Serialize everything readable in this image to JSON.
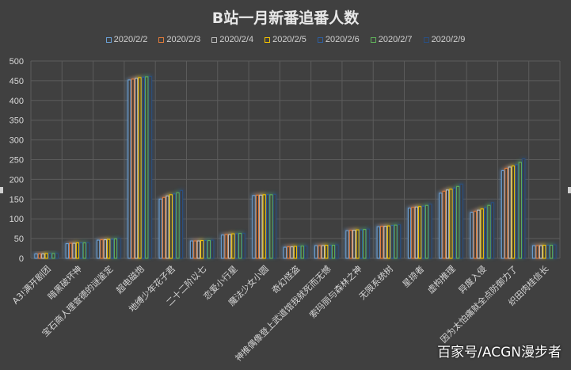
{
  "watermark": "百家号/ACGN漫步者",
  "chart_data": {
    "type": "bar",
    "title": "B站一月新番追番人数",
    "xlabel": "",
    "ylabel": "",
    "ylim": [
      0,
      500
    ],
    "yticks": [
      0,
      50,
      100,
      150,
      200,
      250,
      300,
      350,
      400,
      450,
      500
    ],
    "grid": true,
    "legend_position": "top",
    "categories": [
      "A3!满开剧团",
      "暗黑破坏神",
      "宝石商人理查德的谜鉴定",
      "超电磁炮",
      "地缚少年花子君",
      "二十二阶以七",
      "恋爱小行星",
      "魔法少女小圆",
      "奇幻怪盗",
      "神推偶像登上武道馆我就死而无憾",
      "索玛丽与森林之神",
      "无限系统树",
      "星掠者",
      "虚构推理",
      "异度入侵",
      "因为太怕痛就全点防御力了",
      "织田肉桂信长"
    ],
    "series": [
      {
        "name": "2020/2/2",
        "color": "#6a9fd4",
        "values": [
          11,
          37,
          46,
          452,
          150,
          44,
          59,
          159,
          28,
          32,
          70,
          80,
          127,
          165,
          116,
          222,
          32
        ]
      },
      {
        "name": "2020/2/3",
        "color": "#e07b3a",
        "values": [
          11,
          38,
          47,
          454,
          154,
          44,
          60,
          160,
          29,
          32,
          71,
          81,
          129,
          170,
          119,
          228,
          32
        ]
      },
      {
        "name": "2020/2/4",
        "color": "#bdbdbd",
        "values": [
          11,
          38,
          47,
          456,
          158,
          44,
          60,
          160,
          29,
          32,
          71,
          81,
          130,
          173,
          122,
          231,
          32
        ]
      },
      {
        "name": "2020/2/5",
        "color": "#f2c200",
        "values": [
          12,
          39,
          48,
          458,
          161,
          45,
          62,
          161,
          30,
          33,
          72,
          82,
          131,
          175,
          125,
          234,
          33
        ]
      },
      {
        "name": "2020/2/6",
        "color": "#2e5e9e",
        "values": [
          12,
          39,
          48,
          459,
          163,
          45,
          62,
          161,
          30,
          33,
          72,
          83,
          132,
          178,
          128,
          237,
          33
        ]
      },
      {
        "name": "2020/2/7",
        "color": "#5fb05a",
        "values": [
          12,
          39,
          49,
          460,
          166,
          45,
          63,
          161,
          31,
          33,
          73,
          84,
          134,
          182,
          134,
          243,
          33
        ]
      },
      {
        "name": "2020/2/9",
        "color": "#2a4f80",
        "values": [
          12,
          39,
          50,
          461,
          172,
          46,
          63,
          162,
          31,
          34,
          74,
          85,
          137,
          188,
          141,
          252,
          34
        ]
      }
    ]
  }
}
